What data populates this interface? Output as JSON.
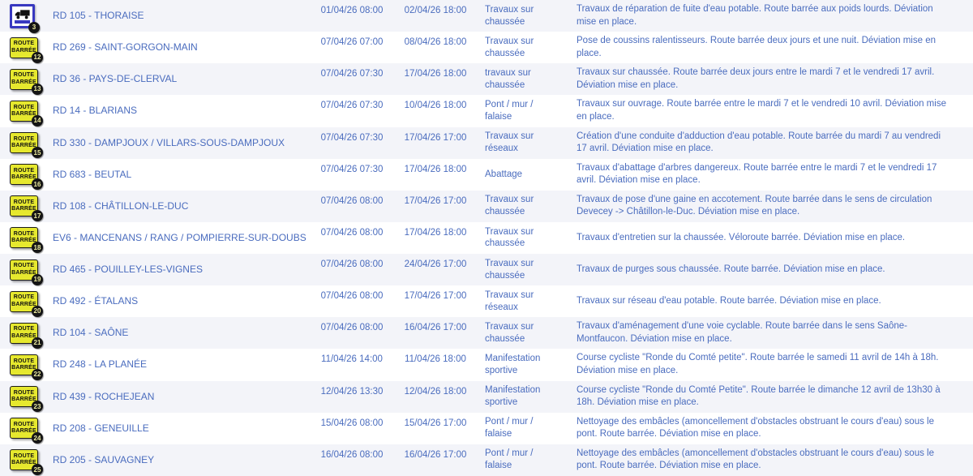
{
  "colors": {
    "text_blue": "#4a6cbe",
    "row_stripe": "#f3f4f9",
    "sign_yellow": "#e6e82e",
    "truck_sign_border": "#3838c0",
    "badge_background": "#151515",
    "badge_text": "#eeeda0"
  },
  "icons": {
    "route_barree_line1": "ROUTE",
    "route_barree_line2": "BARRÉE"
  },
  "table": {
    "columns": [
      "icon",
      "road",
      "start",
      "end",
      "type",
      "description"
    ],
    "rows": [
      {
        "icon": "truck-restricted-sign",
        "badge": "3",
        "road": "RD 105 - THORAISE",
        "start": "01/04/26 08:00",
        "end": "02/04/26 18:00",
        "type": "Travaux sur chaussée",
        "description": "Travaux de réparation de fuite d'eau potable. Route barrée aux poids lourds. Déviation mise en place."
      },
      {
        "icon": "route-barree-sign",
        "badge": "12",
        "road": "RD 269 - SAINT-GORGON-MAIN",
        "start": "07/04/26 07:00",
        "end": "08/04/26 18:00",
        "type": "Travaux sur chaussée",
        "description": "Pose de coussins ralentisseurs. Route barrée deux jours et une nuit. Déviation mise en place."
      },
      {
        "icon": "route-barree-sign",
        "badge": "13",
        "road": "RD 36 - PAYS-DE-CLERVAL",
        "start": "07/04/26 07:30",
        "end": "17/04/26 18:00",
        "type": "travaux sur chaussée",
        "description": "Travaux sur chaussée. Route barrée deux jours entre le mardi 7 et le vendredi 17 avril. Déviation mise en place."
      },
      {
        "icon": "route-barree-sign",
        "badge": "14",
        "road": "RD 14 - BLARIANS",
        "start": "07/04/26 07:30",
        "end": "10/04/26 18:00",
        "type": "Pont / mur / falaise",
        "description": "Travaux sur ouvrage. Route barrée entre le mardi 7 et le vendredi 10 avril. Déviation mise en place."
      },
      {
        "icon": "route-barree-sign",
        "badge": "15",
        "road": "RD 330 - DAMPJOUX / VILLARS-SOUS-DAMPJOUX",
        "start": "07/04/26 07:30",
        "end": "17/04/26 17:00",
        "type": "Travaux sur réseaux",
        "description": "Création d'une conduite d'adduction d'eau potable. Route barrée du mardi 7 au vendredi 17 avril. Déviation mise en place."
      },
      {
        "icon": "route-barree-sign",
        "badge": "16",
        "road": "RD 683 - BEUTAL",
        "start": "07/04/26 07:30",
        "end": "17/04/26 18:00",
        "type": "Abattage",
        "description": "Travaux d'abattage d'arbres dangereux. Route barrée entre le mardi 7 et le vendredi 17 avril. Déviation mise en place."
      },
      {
        "icon": "route-barree-sign",
        "badge": "17",
        "road": "RD 108 - CHÂTILLON-LE-DUC",
        "start": "07/04/26 08:00",
        "end": "17/04/26 17:00",
        "type": "Travaux sur chaussée",
        "description": "Travaux de pose d'une gaine en accotement. Route barrée dans le sens de circulation Devecey -> Châtillon-le-Duc. Déviation mise en place."
      },
      {
        "icon": "route-barree-sign",
        "badge": "18",
        "road": "EV6 - MANCENANS / RANG / POMPIERRE-SUR-DOUBS",
        "start": "07/04/26 08:00",
        "end": "17/04/26 18:00",
        "type": "Travaux sur chaussée",
        "description": "Travaux d'entretien sur la chaussée. Véloroute barrée. Déviation mise en place."
      },
      {
        "icon": "route-barree-sign",
        "badge": "19",
        "road": "RD 465 - POUILLEY-LES-VIGNES",
        "start": "07/04/26 08:00",
        "end": "24/04/26 17:00",
        "type": "Travaux sur chaussée",
        "description": "Travaux de purges sous chaussée. Route barrée. Déviation mise en place."
      },
      {
        "icon": "route-barree-sign",
        "badge": "20",
        "road": "RD 492 - ÉTALANS",
        "start": "07/04/26 08:00",
        "end": "17/04/26 17:00",
        "type": "Travaux sur réseaux",
        "description": "Travaux sur réseau d'eau potable. Route barrée. Déviation mise en place."
      },
      {
        "icon": "route-barree-sign",
        "badge": "21",
        "road": "RD 104 - SAÔNE",
        "start": "07/04/26 08:00",
        "end": "16/04/26 17:00",
        "type": "Travaux sur chaussée",
        "description": "Travaux d'aménagement d'une voie cyclable. Route barrée dans le sens Saône-Montfaucon. Déviation mise en place."
      },
      {
        "icon": "route-barree-sign",
        "badge": "22",
        "road": "RD 248 - LA PLANÉE",
        "start": "11/04/26 14:00",
        "end": "11/04/26 18:00",
        "type": "Manifestation sportive",
        "description": "Course cycliste \"Ronde du Comté petite\". Route barrée le samedi 11 avril de 14h à 18h. Déviation mise en place."
      },
      {
        "icon": "route-barree-sign",
        "badge": "23",
        "road": "RD 439 - ROCHEJEAN",
        "start": "12/04/26 13:30",
        "end": "12/04/26 18:00",
        "type": "Manifestation sportive",
        "description": "Course cycliste \"Ronde du Comté Petite\". Route barrée le dimanche 12 avril de 13h30 à 18h. Déviation mise en place."
      },
      {
        "icon": "route-barree-sign",
        "badge": "24",
        "road": "RD 208 - GENEUILLE",
        "start": "15/04/26 08:00",
        "end": "15/04/26 17:00",
        "type": "Pont / mur / falaise",
        "description": "Nettoyage des embâcles (amoncellement d'obstacles obstruant le cours d'eau) sous le pont. Route barrée. Déviation mise en place."
      },
      {
        "icon": "route-barree-sign",
        "badge": "25",
        "road": "RD 205 - SAUVAGNEY",
        "start": "16/04/26 08:00",
        "end": "16/04/26 17:00",
        "type": "Pont / mur / falaise",
        "description": "Nettoyage des embâcles (amoncellement d'obstacles obstruant le cours d'eau) sous le pont. Route barrée. Déviation mise en place."
      }
    ]
  }
}
